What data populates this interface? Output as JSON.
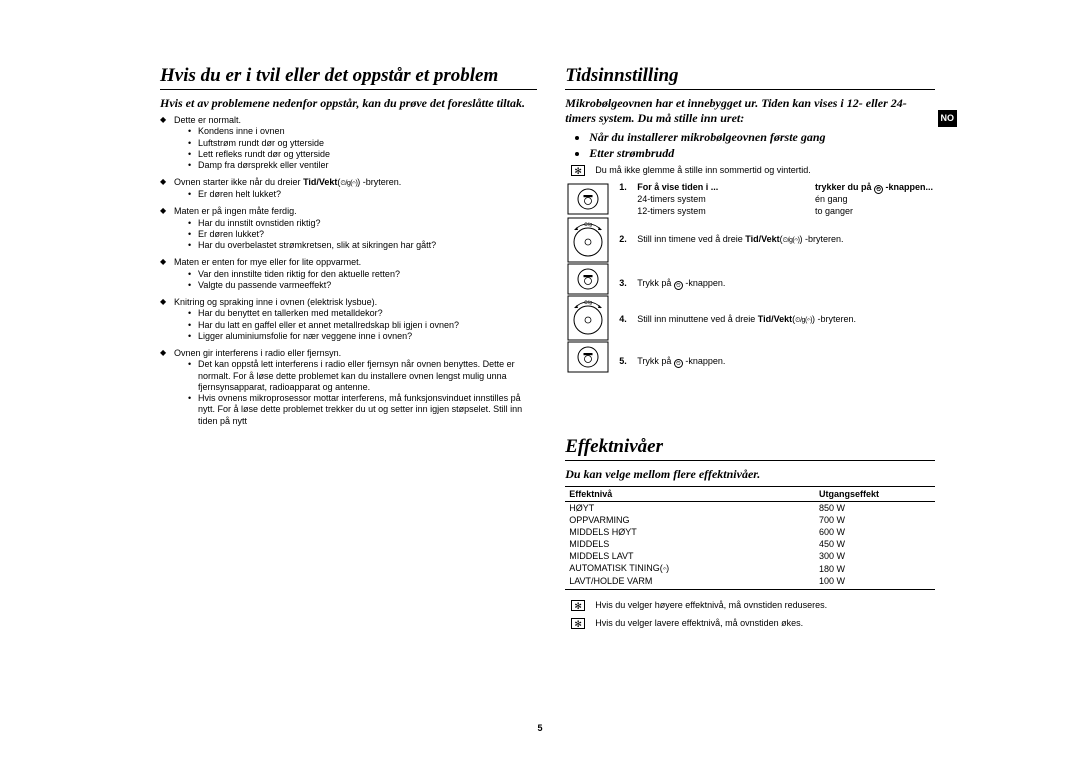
{
  "lang_tab": "NO",
  "page_number": "5",
  "left": {
    "title": "Hvis du er i tvil eller det oppstår et problem",
    "intro": "Hvis et av problemene nedenfor oppstår, kan du prøve det foreslåtte tiltak.",
    "groups": [
      {
        "head": "Dette er normalt.",
        "items": [
          "Kondens inne i ovnen",
          "Luftstrøm rundt dør og ytterside",
          "Lett refleks rundt dør og ytterside",
          "Damp fra dørsprekk eller ventiler"
        ]
      },
      {
        "head_html": "Ovnen starter ikke når du dreier <b>Tid/Vekt</b>(<span class='super-sym'>⏲/g(𝄐)</span>) -bryteren.",
        "items": [
          "Er døren helt lukket?"
        ]
      },
      {
        "head": "Maten er på ingen måte ferdig.",
        "items": [
          "Har du innstilt ovnstiden riktig?",
          "Er døren lukket?",
          "Har du overbelastet strømkretsen, slik at sikringen har gått?"
        ]
      },
      {
        "head": "Maten er enten for mye eller for lite oppvarmet.",
        "items": [
          "Var den innstilte tiden riktig for den aktuelle retten?",
          "Valgte du passende varmeeffekt?"
        ]
      },
      {
        "head": "Knitring og spraking inne i ovnen (elektrisk lysbue).",
        "items": [
          "Har du benyttet en tallerken med metalldekor?",
          "Har du latt en gaffel eller et annet metallredskap bli igjen i ovnen?",
          "Ligger aluminiumsfolie for nær veggene inne i ovnen?"
        ]
      },
      {
        "head": "Ovnen gir interferens i radio eller fjernsyn.",
        "items": [
          "Det kan oppstå lett interferens i radio eller fjernsyn når ovnen benyttes. Dette er normalt. For å løse dette problemet kan du installere ovnen lengst mulig unna fjernsynsapparat, radioapparat og antenne.",
          "Hvis ovnens mikroprosessor mottar interferens, må funksjonsvinduet innstilles på nytt. For å løse dette problemet trekker du ut og setter inn igjen støpselet. Still inn tiden på nytt"
        ]
      }
    ]
  },
  "right": {
    "s1": {
      "title": "Tidsinnstilling",
      "intro": "Mikrobølgeovnen har et innebygget ur. Tiden kan vises i 12- eller 24- timers system. Du må stille inn uret:",
      "bold_bullets": [
        "Når du installerer mikrobølgeovnen første gang",
        "Etter strømbrudd"
      ],
      "note": "Du må ikke glemme å stille inn sommertid og vintertid.",
      "steps": [
        {
          "n": "1.",
          "header_c1": "For å vise tiden i ...",
          "header_c2_html": "trykker du på <span class='inline-icon'>⏲</span> -knappen...",
          "rows": [
            {
              "c1": "24-timers system",
              "c2": "én gang"
            },
            {
              "c1": "12-timers system",
              "c2": "to ganger"
            }
          ]
        },
        {
          "n": "2.",
          "body_html": "Still inn timene ved å dreie <b>Tid/Vekt</b>(<span class='super-sym'>⏲/g(𝄐)</span>) -bryteren."
        },
        {
          "n": "3.",
          "body_html": "Trykk på <span class='inline-icon'>⏲</span> -knappen."
        },
        {
          "n": "4.",
          "body_html": "Still inn minuttene ved å dreie <b>Tid/Vekt</b>(<span class='super-sym'>⏲/g(𝄐)</span>) -bryteren."
        },
        {
          "n": "5.",
          "body_html": "Trykk på <span class='inline-icon'>⏲</span> -knappen."
        }
      ]
    },
    "s2": {
      "title": "Effektnivåer",
      "intro": "Du kan velge mellom flere effektnivåer.",
      "table": {
        "h1": "Effektnivå",
        "h2": "Utgangseffekt",
        "rows": [
          {
            "name": "HØYT",
            "w": "850 W"
          },
          {
            "name": "OPPVARMING",
            "w": "700 W"
          },
          {
            "name": "MIDDELS HØYT",
            "w": "600 W"
          },
          {
            "name": "MIDDELS",
            "w": "450 W"
          },
          {
            "name": "MIDDELS LAVT",
            "w": "300 W"
          },
          {
            "name_html": "AUTOMATISK TINING(<span class='super-sym'>𝄐</span>)",
            "w": "180 W"
          },
          {
            "name": "LAVT/HOLDE VARM",
            "w": "100 W"
          }
        ]
      },
      "notes": [
        "Hvis du velger høyere effektnivå, må ovnstiden reduseres.",
        "Hvis du velger lavere effektnivå, må ovnstiden økes."
      ]
    }
  }
}
